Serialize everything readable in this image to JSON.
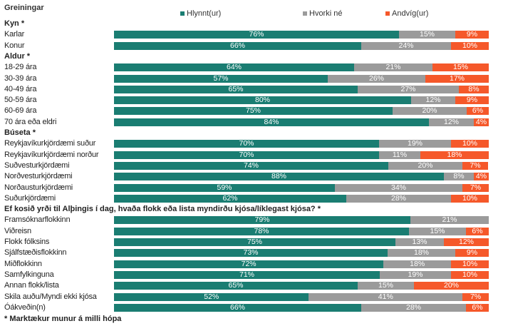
{
  "header": "Greiningar",
  "footnote": "* Marktækur munur á milli hópa",
  "colors": {
    "Hlynnt(ur)": "#1a7d72",
    "Hvorki né": "#9b9b9b",
    "Andvíg(ur)": "#f5582a"
  },
  "chart_data": {
    "type": "bar",
    "orientation": "horizontal-stacked-100",
    "title": "Greiningar",
    "legend": [
      "Hlynnt(ur)",
      "Hvorki né",
      "Andvíg(ur)"
    ],
    "legend_position": "top",
    "footnote": "* Marktækur munur á milli hópa",
    "groups": [
      {
        "name": "Kyn *",
        "rows": [
          {
            "label": "Karlar",
            "values": [
              76,
              15,
              9
            ]
          },
          {
            "label": "Konur",
            "values": [
              66,
              24,
              10
            ]
          }
        ]
      },
      {
        "name": "Aldur *",
        "rows": [
          {
            "label": "18-29 ára",
            "values": [
              64,
              21,
              15
            ]
          },
          {
            "label": "30-39 ára",
            "values": [
              57,
              26,
              17
            ]
          },
          {
            "label": "40-49 ára",
            "values": [
              65,
              27,
              8
            ]
          },
          {
            "label": "50-59 ára",
            "values": [
              80,
              12,
              9
            ]
          },
          {
            "label": "60-69 ára",
            "values": [
              75,
              20,
              6
            ]
          },
          {
            "label": "70 ára eða eldri",
            "values": [
              84,
              12,
              4
            ]
          }
        ]
      },
      {
        "name": "Búseta *",
        "rows": [
          {
            "label": "Reykjavíkurkjördæmi suður",
            "values": [
              70,
              19,
              10
            ]
          },
          {
            "label": "Reykjavíkurkjördæmi norður",
            "values": [
              70,
              11,
              18
            ]
          },
          {
            "label": "Suðvesturkjördæmi",
            "values": [
              74,
              20,
              7
            ]
          },
          {
            "label": "Norðvesturkjördæmi",
            "values": [
              88,
              8,
              4
            ]
          },
          {
            "label": "Norðausturkjördæmi",
            "values": [
              59,
              34,
              7
            ]
          },
          {
            "label": "Suðurkjördæmi",
            "values": [
              62,
              28,
              10
            ]
          }
        ]
      },
      {
        "name": "Ef kosið yrði til Alþingis í dag, hvaða flokk eða lista myndirðu kjósa/líklegast kjósa? *",
        "rows": [
          {
            "label": "Framsóknarflokkinn",
            "values": [
              79,
              21,
              0
            ]
          },
          {
            "label": "Viðreisn",
            "values": [
              78,
              15,
              6
            ]
          },
          {
            "label": "Flokk fólksins",
            "values": [
              75,
              13,
              12
            ]
          },
          {
            "label": "Sjálfstæðisflokkinn",
            "values": [
              73,
              18,
              9
            ]
          },
          {
            "label": "Miðflokkinn",
            "values": [
              72,
              18,
              10
            ]
          },
          {
            "label": "Samfylkinguna",
            "values": [
              71,
              19,
              10
            ]
          },
          {
            "label": "Annan flokk/lista",
            "values": [
              65,
              15,
              20
            ]
          },
          {
            "label": "Skila auðu/Myndi ekki kjósa",
            "values": [
              52,
              41,
              7
            ]
          },
          {
            "label": "Óákveðin(n)",
            "values": [
              66,
              28,
              6
            ]
          }
        ]
      }
    ]
  }
}
